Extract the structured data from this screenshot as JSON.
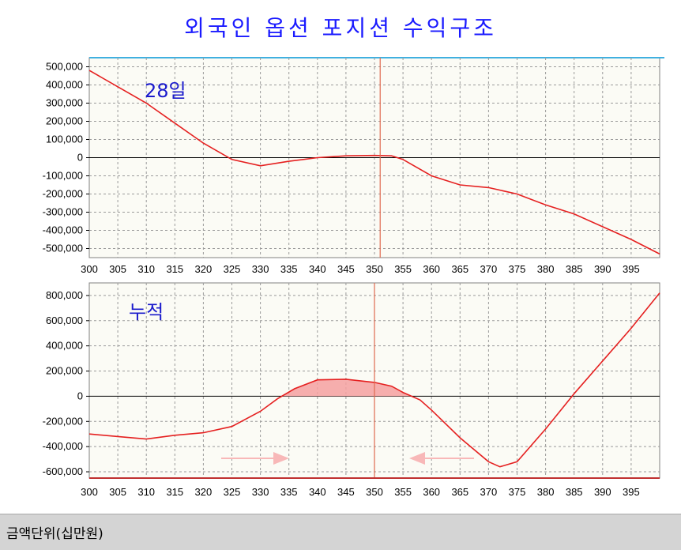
{
  "title": "외국인 옵션 포지션 수익구조",
  "footer": {
    "unit_label": "금액단위(십만원)"
  },
  "colors": {
    "curve": "#e52020",
    "cursor": "#e06a50",
    "fill": "#f5a0a0",
    "grid": "#9a9a9a",
    "bg": "#fbfbf5",
    "annotation": "#1a1acc",
    "arrow": "#f8b8b8"
  },
  "chart_data": [
    {
      "type": "line",
      "annotation": "28일",
      "x_ticks": [
        "300",
        "305",
        "310",
        "315",
        "320",
        "325",
        "330",
        "335",
        "340",
        "345",
        "350",
        "355",
        "360",
        "365",
        "370",
        "375",
        "380",
        "385",
        "390",
        "395"
      ],
      "y_ticks": [
        "500,000",
        "400,000",
        "300,000",
        "200,000",
        "100,000",
        "0",
        "-100,000",
        "-200,000",
        "-300,000",
        "-400,000",
        "-500,000"
      ],
      "xlim": [
        300,
        400
      ],
      "ylim": [
        -550000,
        550000
      ],
      "cursor_x": 351,
      "grid": true,
      "series": [
        {
          "x": [
            300,
            305,
            310,
            315,
            320,
            325,
            330,
            335,
            340,
            345,
            350,
            353,
            355,
            360,
            365,
            370,
            375,
            380,
            385,
            390,
            395,
            400
          ],
          "y": [
            480000,
            390000,
            300000,
            190000,
            80000,
            -10000,
            -45000,
            -20000,
            0,
            10000,
            12000,
            10000,
            -10000,
            -100000,
            -150000,
            -165000,
            -200000,
            -260000,
            -310000,
            -380000,
            -450000,
            -530000
          ]
        }
      ]
    },
    {
      "type": "area",
      "annotation": "누적",
      "x_ticks": [
        "300",
        "305",
        "310",
        "315",
        "320",
        "325",
        "330",
        "335",
        "340",
        "345",
        "350",
        "355",
        "360",
        "365",
        "370",
        "375",
        "380",
        "385",
        "390",
        "395"
      ],
      "y_ticks": [
        "800,000",
        "600,000",
        "400,000",
        "200,000",
        "0",
        "-200,000",
        "-400,000",
        "-600,000"
      ],
      "xlim": [
        300,
        400
      ],
      "ylim": [
        -650000,
        900000
      ],
      "cursor_x": 350,
      "grid": true,
      "series": [
        {
          "x": [
            300,
            305,
            310,
            315,
            320,
            325,
            330,
            333,
            336,
            340,
            345,
            350,
            353,
            355,
            358,
            360,
            365,
            370,
            372,
            375,
            380,
            385,
            390,
            395,
            400
          ],
          "y": [
            -300000,
            -320000,
            -340000,
            -310000,
            -290000,
            -240000,
            -120000,
            -20000,
            60000,
            130000,
            135000,
            110000,
            80000,
            30000,
            -30000,
            -110000,
            -330000,
            -520000,
            -560000,
            -520000,
            -260000,
            20000,
            280000,
            540000,
            820000
          ]
        }
      ]
    }
  ]
}
